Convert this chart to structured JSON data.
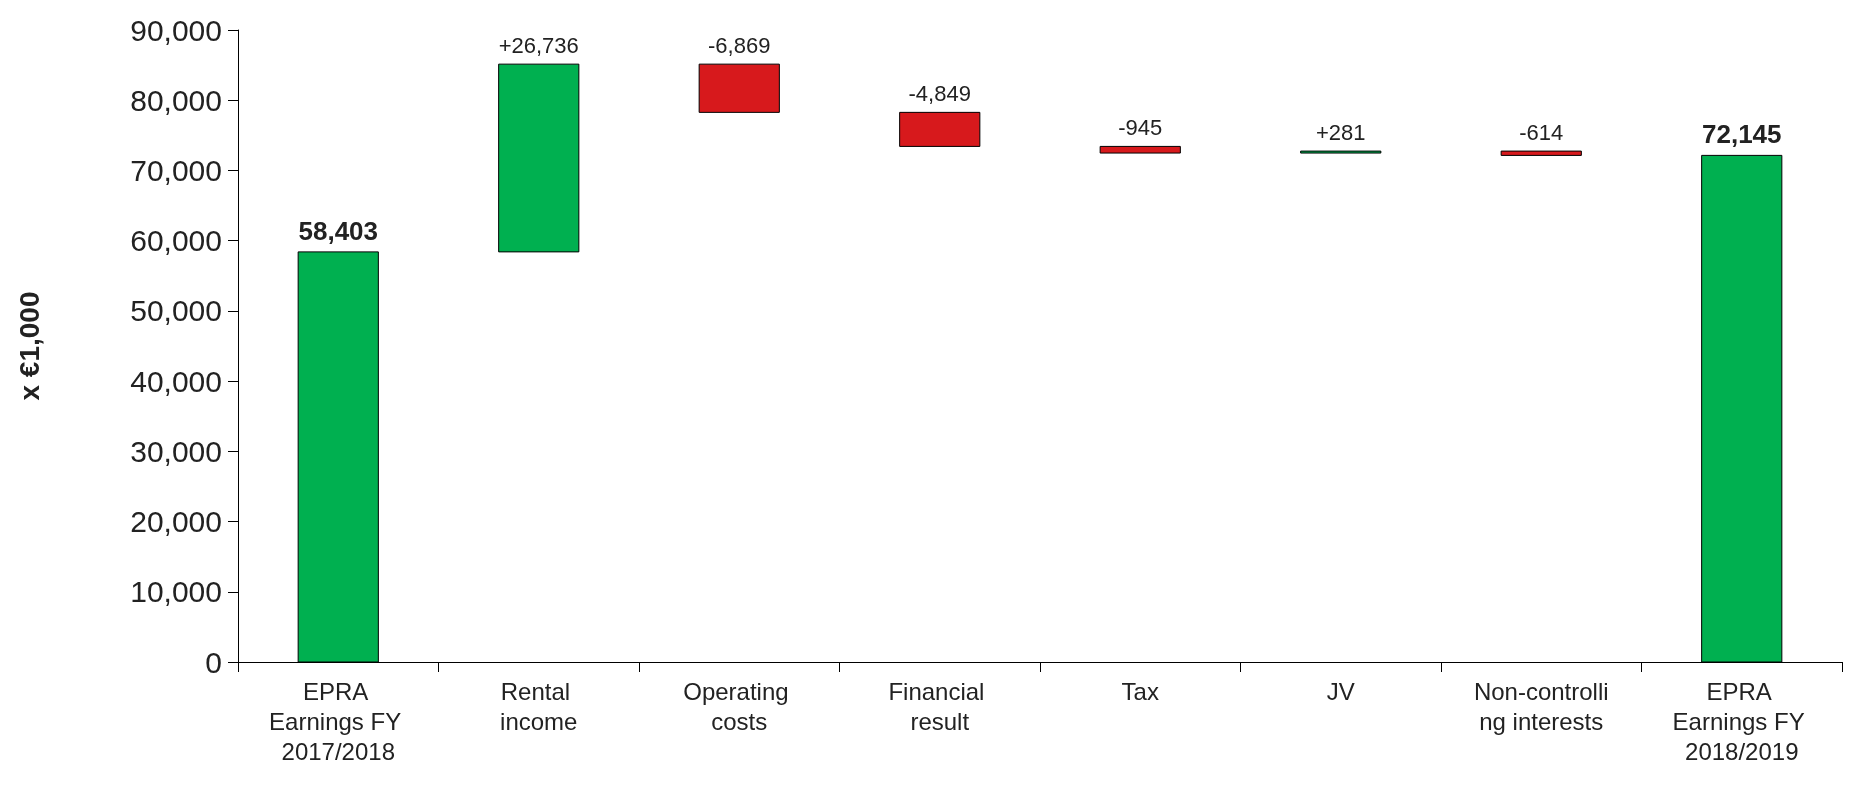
{
  "chart_data": {
    "type": "bar",
    "ylabel": "x €1,000",
    "categories": [
      "EPRA Earnings FY 2017/2018",
      "Rental income",
      "Operating costs",
      "Financial result",
      "Tax",
      "JV",
      "Non-controlling interests",
      "EPRA Earnings FY 2018/2019"
    ],
    "values": [
      58403,
      26736,
      -6869,
      -4849,
      -945,
      281,
      -614,
      72145
    ],
    "base": [
      0,
      58403,
      85139,
      78270,
      73421,
      72476,
      72757,
      0
    ],
    "colors": [
      "#00b050",
      "#00b050",
      "#d7191c",
      "#d7191c",
      "#d7191c",
      "#00b050",
      "#d7191c",
      "#00b050"
    ],
    "value_labels": [
      "58,403",
      "+26,736",
      "-6,869",
      "-4,849",
      "-945",
      "+281",
      "-614",
      "72,145"
    ],
    "ylim": [
      0,
      90000
    ],
    "yticks": [
      {
        "value": 0,
        "label": "0"
      },
      {
        "value": 10000,
        "label": "10,000"
      },
      {
        "value": 20000,
        "label": "20,000"
      },
      {
        "value": 30000,
        "label": "30,000"
      },
      {
        "value": 40000,
        "label": "40,000"
      },
      {
        "value": 50000,
        "label": "50,000"
      },
      {
        "value": 60000,
        "label": "60,000"
      },
      {
        "value": 70000,
        "label": "70,000"
      },
      {
        "value": 80000,
        "label": "80,000"
      },
      {
        "value": 90000,
        "label": "90,000"
      }
    ]
  }
}
